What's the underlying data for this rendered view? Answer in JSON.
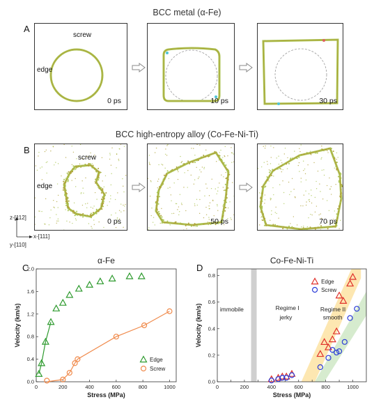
{
  "row_a": {
    "title": "BCC metal (α-Fe)",
    "panel_label": "A",
    "label_screw": "screw",
    "label_edge": "edge",
    "times": [
      "0 ps",
      "10 ps",
      "30 ps"
    ]
  },
  "row_b": {
    "title": "BCC high-entropy alloy (Co-Fe-Ni-Ti)",
    "panel_label": "B",
    "label_screw": "screw",
    "label_edge": "edge",
    "times": [
      "0 ps",
      "50 ps",
      "70 ps"
    ],
    "axis_z": "z-[112]",
    "axis_x": "x-[111]",
    "axis_y": "y-[110]"
  },
  "colors": {
    "dislocation": "#b0a23a",
    "dislocation_light": "#a9c552",
    "accent_cyan": "#4fc4d6",
    "edge_green": "#2e9a2e",
    "screw_orange": "#f08a4b",
    "triangle_red": "#e0302a",
    "circle_blue": "#2a3bd8",
    "band_orange": "#fde4a8",
    "band_green": "#cfe8c6"
  },
  "chart_data": [
    {
      "type": "scatter",
      "panel_label": "C",
      "title": "α-Fe",
      "xlabel": "Stress (MPa)",
      "ylabel": "Velocity (km/s)",
      "xlim": [
        0,
        1050
      ],
      "ylim": [
        0,
        2.0
      ],
      "xticks": [
        0,
        200,
        400,
        600,
        800,
        1000
      ],
      "yticks": [
        0.0,
        0.4,
        0.8,
        1.2,
        1.6,
        2.0
      ],
      "ytick_labels": [
        "0.0",
        "0.4",
        "0.8",
        "1.2",
        "1.6",
        "2.0"
      ],
      "legend_position": "bottom-right",
      "series": [
        {
          "name": "Edge",
          "marker": "triangle",
          "color": "#2e9a2e",
          "x": [
            20,
            40,
            70,
            110,
            150,
            200,
            250,
            320,
            400,
            480,
            570,
            700,
            790
          ],
          "y": [
            0.14,
            0.33,
            0.71,
            1.06,
            1.3,
            1.4,
            1.54,
            1.65,
            1.72,
            1.78,
            1.83,
            1.87,
            1.87
          ],
          "fit_x": [
            20,
            40,
            70,
            110
          ],
          "fit_y": [
            0.14,
            0.33,
            0.71,
            1.06
          ]
        },
        {
          "name": "Screw",
          "marker": "circle",
          "color": "#f08a4b",
          "x": [
            80,
            200,
            250,
            290,
            310,
            600,
            810,
            1000
          ],
          "y": [
            0.02,
            0.04,
            0.16,
            0.33,
            0.4,
            0.8,
            1.0,
            1.25
          ],
          "fit_x": [
            80,
            200,
            250,
            290,
            310,
            600,
            810,
            1000
          ],
          "fit_y": [
            0.0,
            0.04,
            0.16,
            0.33,
            0.4,
            0.8,
            1.0,
            1.25
          ]
        }
      ]
    },
    {
      "type": "scatter",
      "panel_label": "D",
      "title": "Co-Fe-Ni-Ti",
      "xlabel": "Stress (MPa)",
      "ylabel": "Velocity (km/s)",
      "xlim": [
        0,
        1100
      ],
      "ylim": [
        0,
        0.85
      ],
      "xticks": [
        0,
        100,
        200,
        300,
        400,
        500,
        600,
        700,
        800,
        900,
        1000
      ],
      "xtick_labels": [
        "0",
        "",
        "200",
        "",
        "400",
        "",
        "600",
        "",
        "800",
        "",
        "1000"
      ],
      "yticks": [
        0.0,
        0.2,
        0.4,
        0.6,
        0.8
      ],
      "ytick_labels": [
        "0.0",
        "0.2",
        "0.4",
        "0.6",
        "0.8"
      ],
      "legend_position": "top-center",
      "annotations": {
        "immobile": "immobile",
        "regime1_line1": "Regime I",
        "regime1_line2": "jerky",
        "regime2_line1": "Regime II",
        "regime2_line2": "smooth"
      },
      "immobile_stress": 270,
      "series": [
        {
          "name": "Edge",
          "marker": "triangle-open",
          "color": "#e0302a",
          "x": [
            400,
            450,
            480,
            510,
            550,
            760,
            790,
            820,
            850,
            880,
            900,
            930,
            980,
            1000
          ],
          "y": [
            0.02,
            0.03,
            0.04,
            0.04,
            0.06,
            0.21,
            0.3,
            0.26,
            0.32,
            0.38,
            0.65,
            0.61,
            0.74,
            0.79
          ]
        },
        {
          "name": "Screw",
          "marker": "circle-open",
          "color": "#2a3bd8",
          "x": [
            400,
            450,
            480,
            510,
            550,
            760,
            820,
            850,
            880,
            900,
            940,
            980,
            1030
          ],
          "y": [
            0.01,
            0.02,
            0.03,
            0.03,
            0.05,
            0.11,
            0.18,
            0.24,
            0.22,
            0.23,
            0.3,
            0.48,
            0.55
          ]
        }
      ]
    }
  ]
}
